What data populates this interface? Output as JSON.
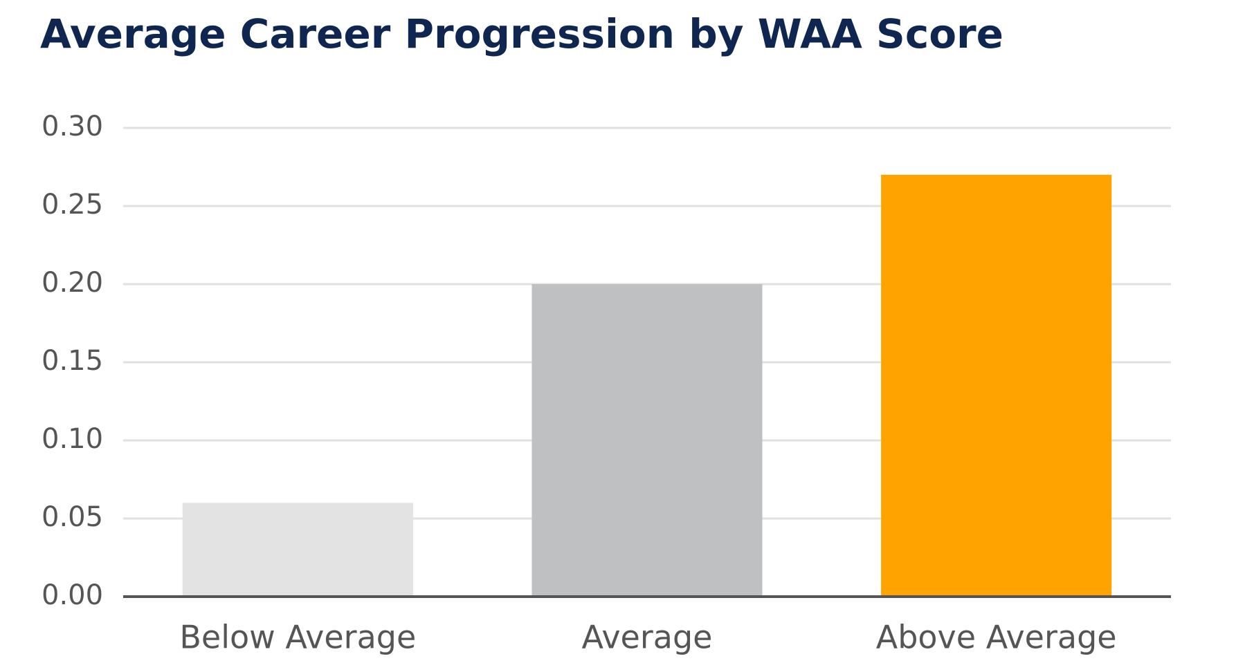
{
  "chart_data": {
    "type": "bar",
    "title": "Average Career Progression by WAA Score",
    "categories": [
      "Below Average",
      "Average",
      "Above Average"
    ],
    "values": [
      0.06,
      0.2,
      0.27
    ],
    "colors": [
      "#e3e3e3",
      "#bfc0c2",
      "#ffa300"
    ],
    "ylim": [
      0,
      0.3
    ],
    "yticks": [
      {
        "value": 0,
        "label": "0.00"
      },
      {
        "value": 0.05,
        "label": "0.05"
      },
      {
        "value": 0.1,
        "label": "0.10"
      },
      {
        "value": 0.15,
        "label": "0.15"
      },
      {
        "value": 0.2,
        "label": "0.20"
      },
      {
        "value": 0.25,
        "label": "0.25"
      },
      {
        "value": 0.3,
        "label": "0.30"
      }
    ],
    "grid": true
  }
}
